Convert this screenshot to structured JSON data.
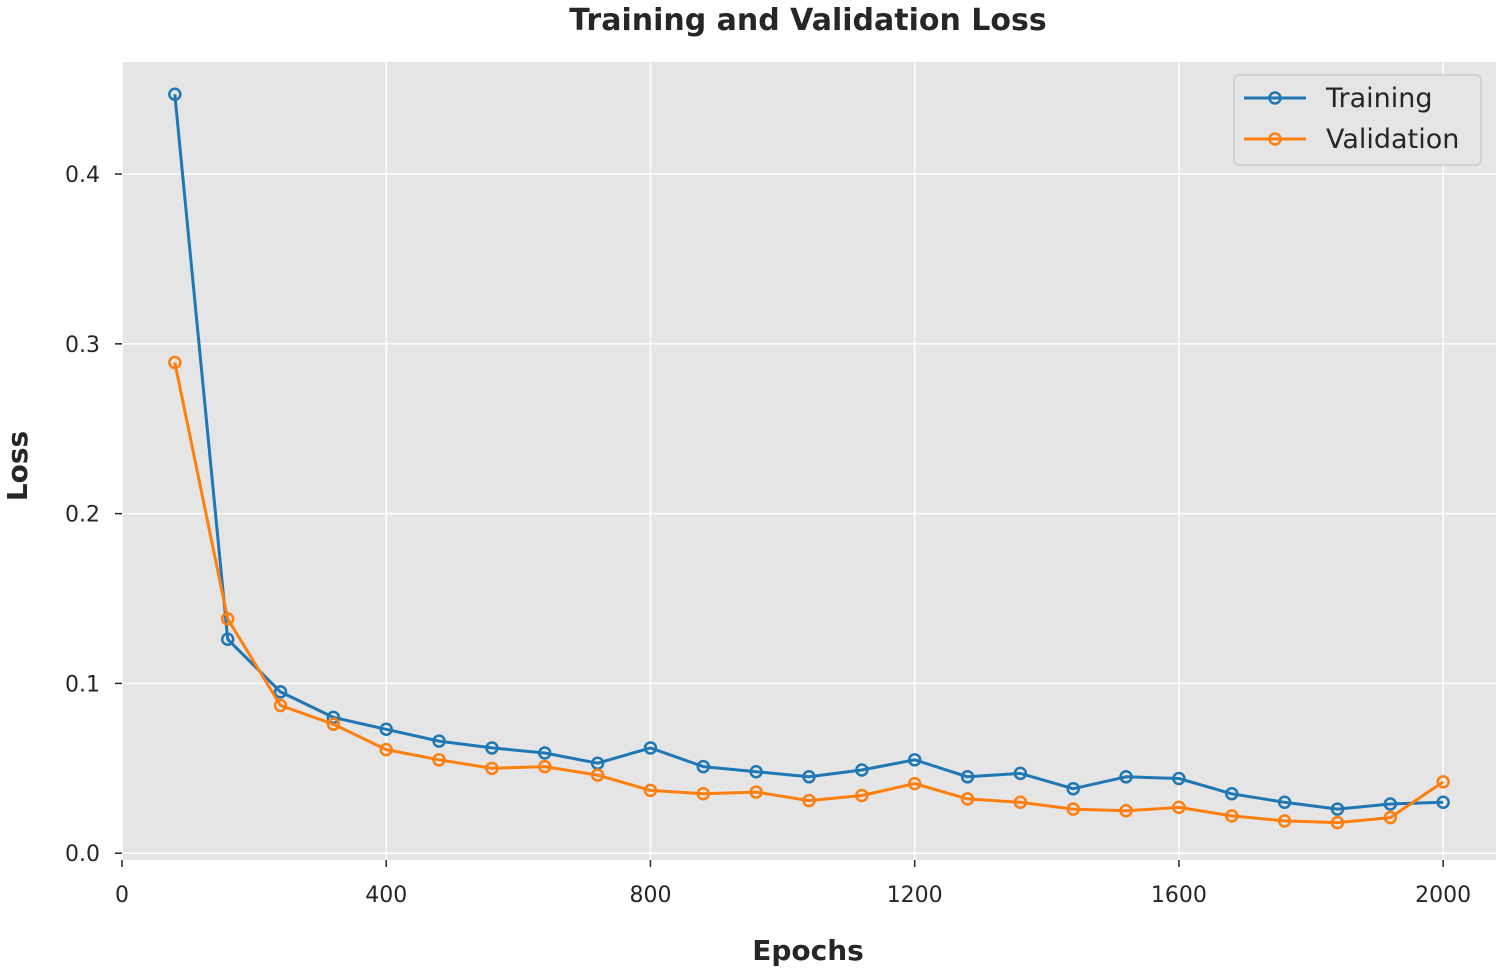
{
  "chart_data": {
    "type": "line",
    "title": "Training and Validation Loss",
    "xlabel": "Epochs",
    "ylabel": "Loss",
    "xlim": [
      0,
      2080
    ],
    "ylim": [
      -0.004,
      0.466
    ],
    "xticks": [
      0,
      400,
      800,
      1200,
      1600,
      2000
    ],
    "yticks": [
      0.0,
      0.1,
      0.2,
      0.3,
      0.4
    ],
    "ytick_labels": [
      "0.0",
      "0.1",
      "0.2",
      "0.3",
      "0.4"
    ],
    "grid": true,
    "legend_position": "top-right",
    "x": [
      80,
      160,
      240,
      320,
      400,
      480,
      560,
      640,
      720,
      800,
      880,
      960,
      1040,
      1120,
      1200,
      1280,
      1360,
      1440,
      1520,
      1600,
      1680,
      1760,
      1840,
      1920,
      2000
    ],
    "series": [
      {
        "name": "Training",
        "color": "#1f77b4",
        "marker": "circle-open",
        "values": [
          0.447,
          0.126,
          0.095,
          0.08,
          0.073,
          0.066,
          0.062,
          0.059,
          0.053,
          0.062,
          0.051,
          0.048,
          0.045,
          0.049,
          0.055,
          0.045,
          0.047,
          0.038,
          0.045,
          0.044,
          0.035,
          0.03,
          0.026,
          0.029,
          0.03
        ]
      },
      {
        "name": "Validation",
        "color": "#ff7f0e",
        "marker": "circle-open",
        "values": [
          0.289,
          0.138,
          0.087,
          0.076,
          0.061,
          0.055,
          0.05,
          0.051,
          0.046,
          0.037,
          0.035,
          0.036,
          0.031,
          0.034,
          0.041,
          0.032,
          0.03,
          0.026,
          0.025,
          0.027,
          0.022,
          0.019,
          0.018,
          0.021,
          0.042
        ]
      }
    ]
  },
  "colors": {
    "plot_background": "#e5e5e5",
    "grid": "#ffffff",
    "text": "#262626"
  }
}
